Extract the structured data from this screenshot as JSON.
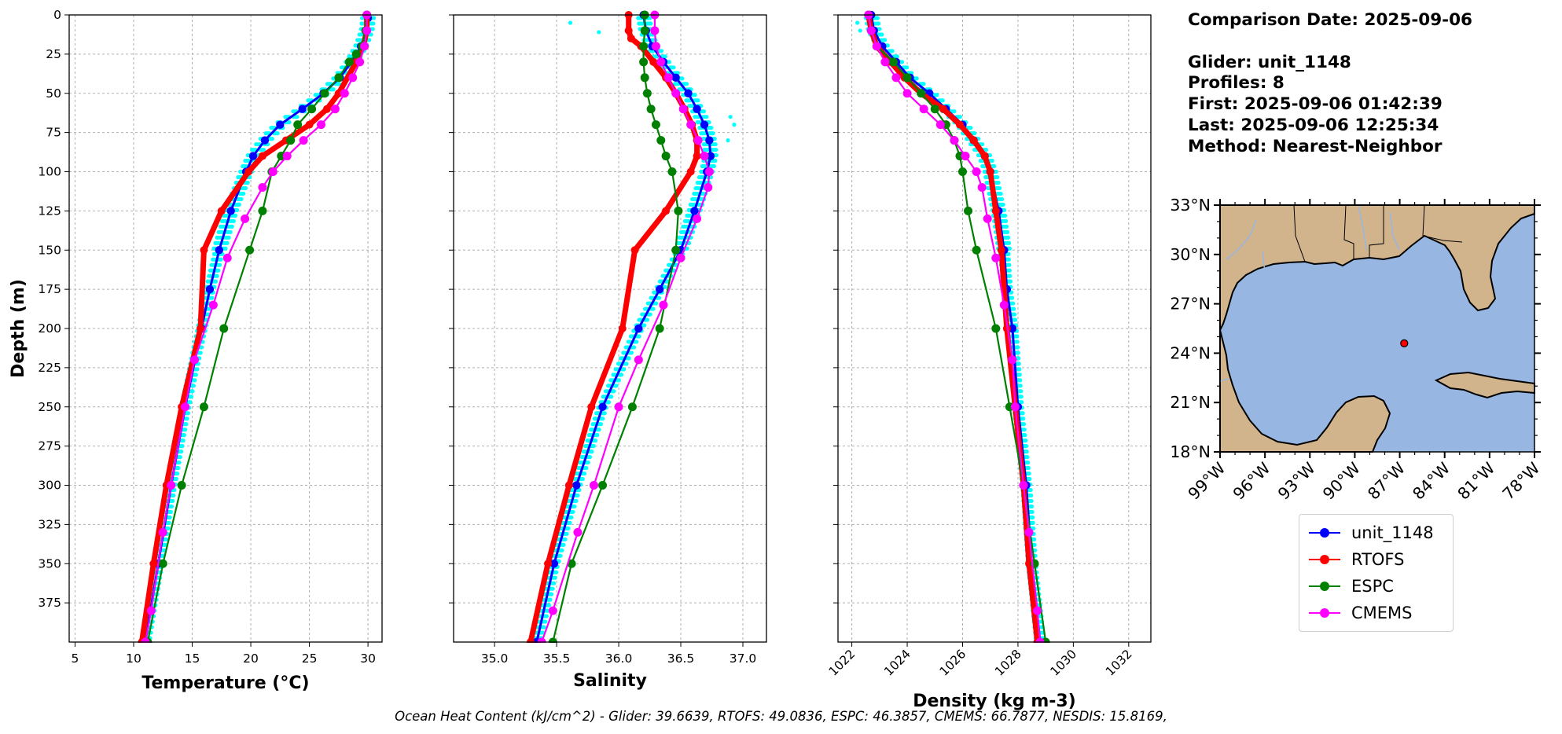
{
  "info": {
    "comparison_date": "Comparison Date: 2025-09-06",
    "glider": "Glider: unit_1148",
    "profiles": "Profiles: 8",
    "first": "First: 2025-09-06 01:42:39",
    "last": "Last: 2025-09-06 12:25:34",
    "method": "Method: Nearest-Neighbor"
  },
  "footer": "Ocean Heat Content (kJ/cm^2) - Glider: 39.6639,  RTOFS: 49.0836,  ESPC: 46.3857,  CMEMS: 66.7877,  NESDIS: 15.8169,",
  "colors": {
    "glider": "#0000ff",
    "glider_raw": "#00ffff",
    "rtofs": "#ff0000",
    "espc": "#008000",
    "cmems": "#ff00ff",
    "land": "#d2b48c",
    "ocean": "#97b6e1",
    "grid": "#b0b0b0"
  },
  "legend": [
    {
      "name": "unit_1148",
      "color": "#0000ff"
    },
    {
      "name": "RTOFS",
      "color": "#ff0000"
    },
    {
      "name": "ESPC",
      "color": "#008000"
    },
    {
      "name": "CMEMS",
      "color": "#ff00ff"
    }
  ],
  "chart_data": [
    {
      "type": "line",
      "xlabel": "Temperature (°C)",
      "ylabel": "Depth (m)",
      "xlim": [
        4.5,
        31.2
      ],
      "ylim": [
        0,
        400
      ],
      "y_inverted": true,
      "xticks": [
        "5",
        "10",
        "15",
        "20",
        "25",
        "30"
      ],
      "yticks": [
        "0",
        "25",
        "50",
        "75",
        "100",
        "125",
        "150",
        "175",
        "200",
        "225",
        "250",
        "275",
        "300",
        "325",
        "350",
        "375"
      ],
      "grid": true,
      "series": [
        {
          "name": "unit_1148",
          "depth": [
            2,
            10,
            20,
            30,
            40,
            50,
            60,
            70,
            80,
            90,
            100,
            125,
            150,
            175,
            200,
            250,
            300,
            350,
            400
          ],
          "values": [
            30.0,
            29.9,
            29.4,
            28.6,
            27.6,
            26.2,
            24.4,
            22.5,
            21.2,
            20.2,
            19.6,
            18.3,
            17.3,
            16.5,
            15.8,
            14.4,
            13.2,
            12.1,
            11.0
          ]
        },
        {
          "name": "RTOFS",
          "depth": [
            0,
            10,
            20,
            30,
            50,
            60,
            70,
            80,
            90,
            100,
            125,
            150,
            200,
            250,
            300,
            350,
            400
          ],
          "values": [
            29.9,
            29.9,
            29.6,
            29.0,
            27.5,
            26.5,
            25.0,
            23.0,
            21.0,
            19.8,
            17.5,
            16.0,
            15.7,
            14.1,
            12.8,
            11.7,
            10.7
          ]
        },
        {
          "name": "ESPC",
          "depth": [
            0,
            10,
            20,
            25,
            30,
            40,
            50,
            60,
            70,
            80,
            90,
            100,
            125,
            150,
            200,
            250,
            300,
            350,
            400
          ],
          "values": [
            29.9,
            29.8,
            29.5,
            29.0,
            28.4,
            27.5,
            26.3,
            25.2,
            24.0,
            23.4,
            22.6,
            21.8,
            21.0,
            19.9,
            17.7,
            16.0,
            14.1,
            12.5,
            11.2
          ]
        },
        {
          "name": "CMEMS",
          "depth": [
            0,
            10,
            20,
            30,
            40,
            50,
            60,
            70,
            80,
            90,
            100,
            110,
            130,
            155,
            185,
            220,
            250,
            300,
            330,
            380,
            400
          ],
          "values": [
            29.9,
            29.9,
            29.7,
            29.3,
            28.7,
            28.0,
            27.2,
            26.0,
            24.5,
            23.1,
            21.9,
            21.0,
            19.5,
            18.0,
            16.8,
            15.2,
            14.4,
            13.2,
            12.5,
            11.5,
            11.0
          ]
        }
      ]
    },
    {
      "type": "line",
      "xlabel": "Salinity",
      "ylabel": "",
      "xlim": [
        34.67,
        37.19
      ],
      "ylim": [
        0,
        400
      ],
      "y_inverted": true,
      "xticks": [
        "35.0",
        "35.5",
        "36.0",
        "36.5",
        "37.0"
      ],
      "yticks": [],
      "grid": true,
      "series": [
        {
          "name": "unit_1148",
          "depth": [
            0,
            10,
            20,
            30,
            40,
            50,
            60,
            70,
            80,
            90,
            100,
            125,
            150,
            175,
            200,
            250,
            300,
            350,
            400
          ],
          "values": [
            36.2,
            36.22,
            36.27,
            36.36,
            36.46,
            36.56,
            36.63,
            36.69,
            36.73,
            36.74,
            36.71,
            36.61,
            36.5,
            36.33,
            36.16,
            35.87,
            35.66,
            35.48,
            35.34
          ]
        },
        {
          "name": "RTOFS",
          "depth": [
            0,
            10,
            15,
            20,
            30,
            40,
            50,
            60,
            70,
            80,
            90,
            100,
            125,
            150,
            200,
            250,
            300,
            350,
            400
          ],
          "values": [
            36.08,
            36.08,
            36.1,
            36.18,
            36.28,
            36.38,
            36.46,
            36.53,
            36.59,
            36.63,
            36.63,
            36.58,
            36.38,
            36.13,
            36.03,
            35.78,
            35.6,
            35.43,
            35.29
          ]
        },
        {
          "name": "ESPC",
          "depth": [
            0,
            10,
            20,
            30,
            40,
            50,
            60,
            70,
            80,
            90,
            100,
            125,
            150,
            200,
            250,
            300,
            350,
            400
          ],
          "values": [
            36.21,
            36.21,
            36.2,
            36.2,
            36.21,
            36.23,
            36.26,
            36.3,
            36.34,
            36.38,
            36.43,
            36.48,
            36.46,
            36.33,
            36.11,
            35.87,
            35.62,
            35.47
          ]
        },
        {
          "name": "CMEMS",
          "depth": [
            0,
            10,
            20,
            30,
            40,
            50,
            60,
            70,
            80,
            90,
            100,
            110,
            130,
            155,
            185,
            220,
            250,
            300,
            330,
            380,
            400
          ],
          "values": [
            36.29,
            36.29,
            36.3,
            36.34,
            36.4,
            36.46,
            36.52,
            36.58,
            36.64,
            36.69,
            36.73,
            36.72,
            36.63,
            36.5,
            36.36,
            36.16,
            36.0,
            35.8,
            35.67,
            35.47,
            35.38
          ]
        }
      ],
      "raw_outliers": [
        [
          35.61,
          5
        ],
        [
          35.84,
          11
        ],
        [
          36.9,
          65
        ],
        [
          36.93,
          70
        ],
        [
          36.88,
          80
        ]
      ]
    },
    {
      "type": "line",
      "xlabel": "Density (kg m-3)",
      "ylabel": "",
      "xlim": [
        1021.5,
        1032.8
      ],
      "ylim": [
        0,
        400
      ],
      "y_inverted": true,
      "xticks": [
        "1022",
        "1024",
        "1026",
        "1028",
        "1030",
        "1032"
      ],
      "yticks": [],
      "grid": true,
      "series": [
        {
          "name": "unit_1148",
          "depth": [
            0,
            10,
            20,
            30,
            40,
            50,
            60,
            70,
            80,
            90,
            100,
            125,
            150,
            175,
            200,
            250,
            300,
            350,
            400
          ],
          "values": [
            1022.7,
            1022.8,
            1023.1,
            1023.6,
            1024.1,
            1024.8,
            1025.4,
            1026.0,
            1026.4,
            1026.8,
            1027.0,
            1027.3,
            1027.5,
            1027.6,
            1027.8,
            1028.0,
            1028.3,
            1028.5,
            1028.8
          ]
        },
        {
          "name": "RTOFS",
          "depth": [
            0,
            10,
            20,
            30,
            40,
            50,
            60,
            70,
            80,
            90,
            100,
            125,
            150,
            200,
            250,
            300,
            350,
            400
          ],
          "values": [
            1022.6,
            1022.7,
            1022.9,
            1023.4,
            1023.9,
            1024.5,
            1025.3,
            1025.9,
            1026.4,
            1026.8,
            1027.0,
            1027.2,
            1027.4,
            1027.6,
            1027.9,
            1028.2,
            1028.4,
            1028.7
          ]
        },
        {
          "name": "ESPC",
          "depth": [
            0,
            10,
            20,
            30,
            40,
            50,
            60,
            70,
            80,
            90,
            100,
            125,
            150,
            200,
            250,
            300,
            350,
            400
          ],
          "values": [
            1022.6,
            1022.7,
            1022.9,
            1023.5,
            1024.0,
            1024.5,
            1025.0,
            1025.4,
            1025.7,
            1025.9,
            1026.0,
            1026.2,
            1026.5,
            1027.2,
            1027.7,
            1028.2,
            1028.6,
            1029.0
          ]
        },
        {
          "name": "CMEMS",
          "depth": [
            0,
            10,
            20,
            30,
            40,
            50,
            60,
            70,
            80,
            90,
            100,
            110,
            130,
            155,
            185,
            220,
            250,
            300,
            330,
            380,
            400
          ],
          "values": [
            1022.6,
            1022.7,
            1022.9,
            1023.2,
            1023.6,
            1024.0,
            1024.6,
            1025.2,
            1025.7,
            1026.1,
            1026.5,
            1026.7,
            1026.9,
            1027.2,
            1027.5,
            1027.8,
            1027.9,
            1028.2,
            1028.4,
            1028.7,
            1028.8
          ]
        }
      ],
      "raw_outliers": [
        [
          1022.2,
          5
        ],
        [
          1022.3,
          10
        ]
      ]
    }
  ],
  "map": {
    "lon_range": [
      -99,
      -78
    ],
    "lat_range": [
      18,
      33
    ],
    "lon_ticks": [
      "99°W",
      "96°W",
      "93°W",
      "90°W",
      "87°W",
      "84°W",
      "81°W",
      "78°W"
    ],
    "lat_ticks": [
      "33°N",
      "30°N",
      "27°N",
      "24°N",
      "21°N",
      "18°N"
    ],
    "glider_position": {
      "lon": -86.7,
      "lat": 24.6
    }
  }
}
